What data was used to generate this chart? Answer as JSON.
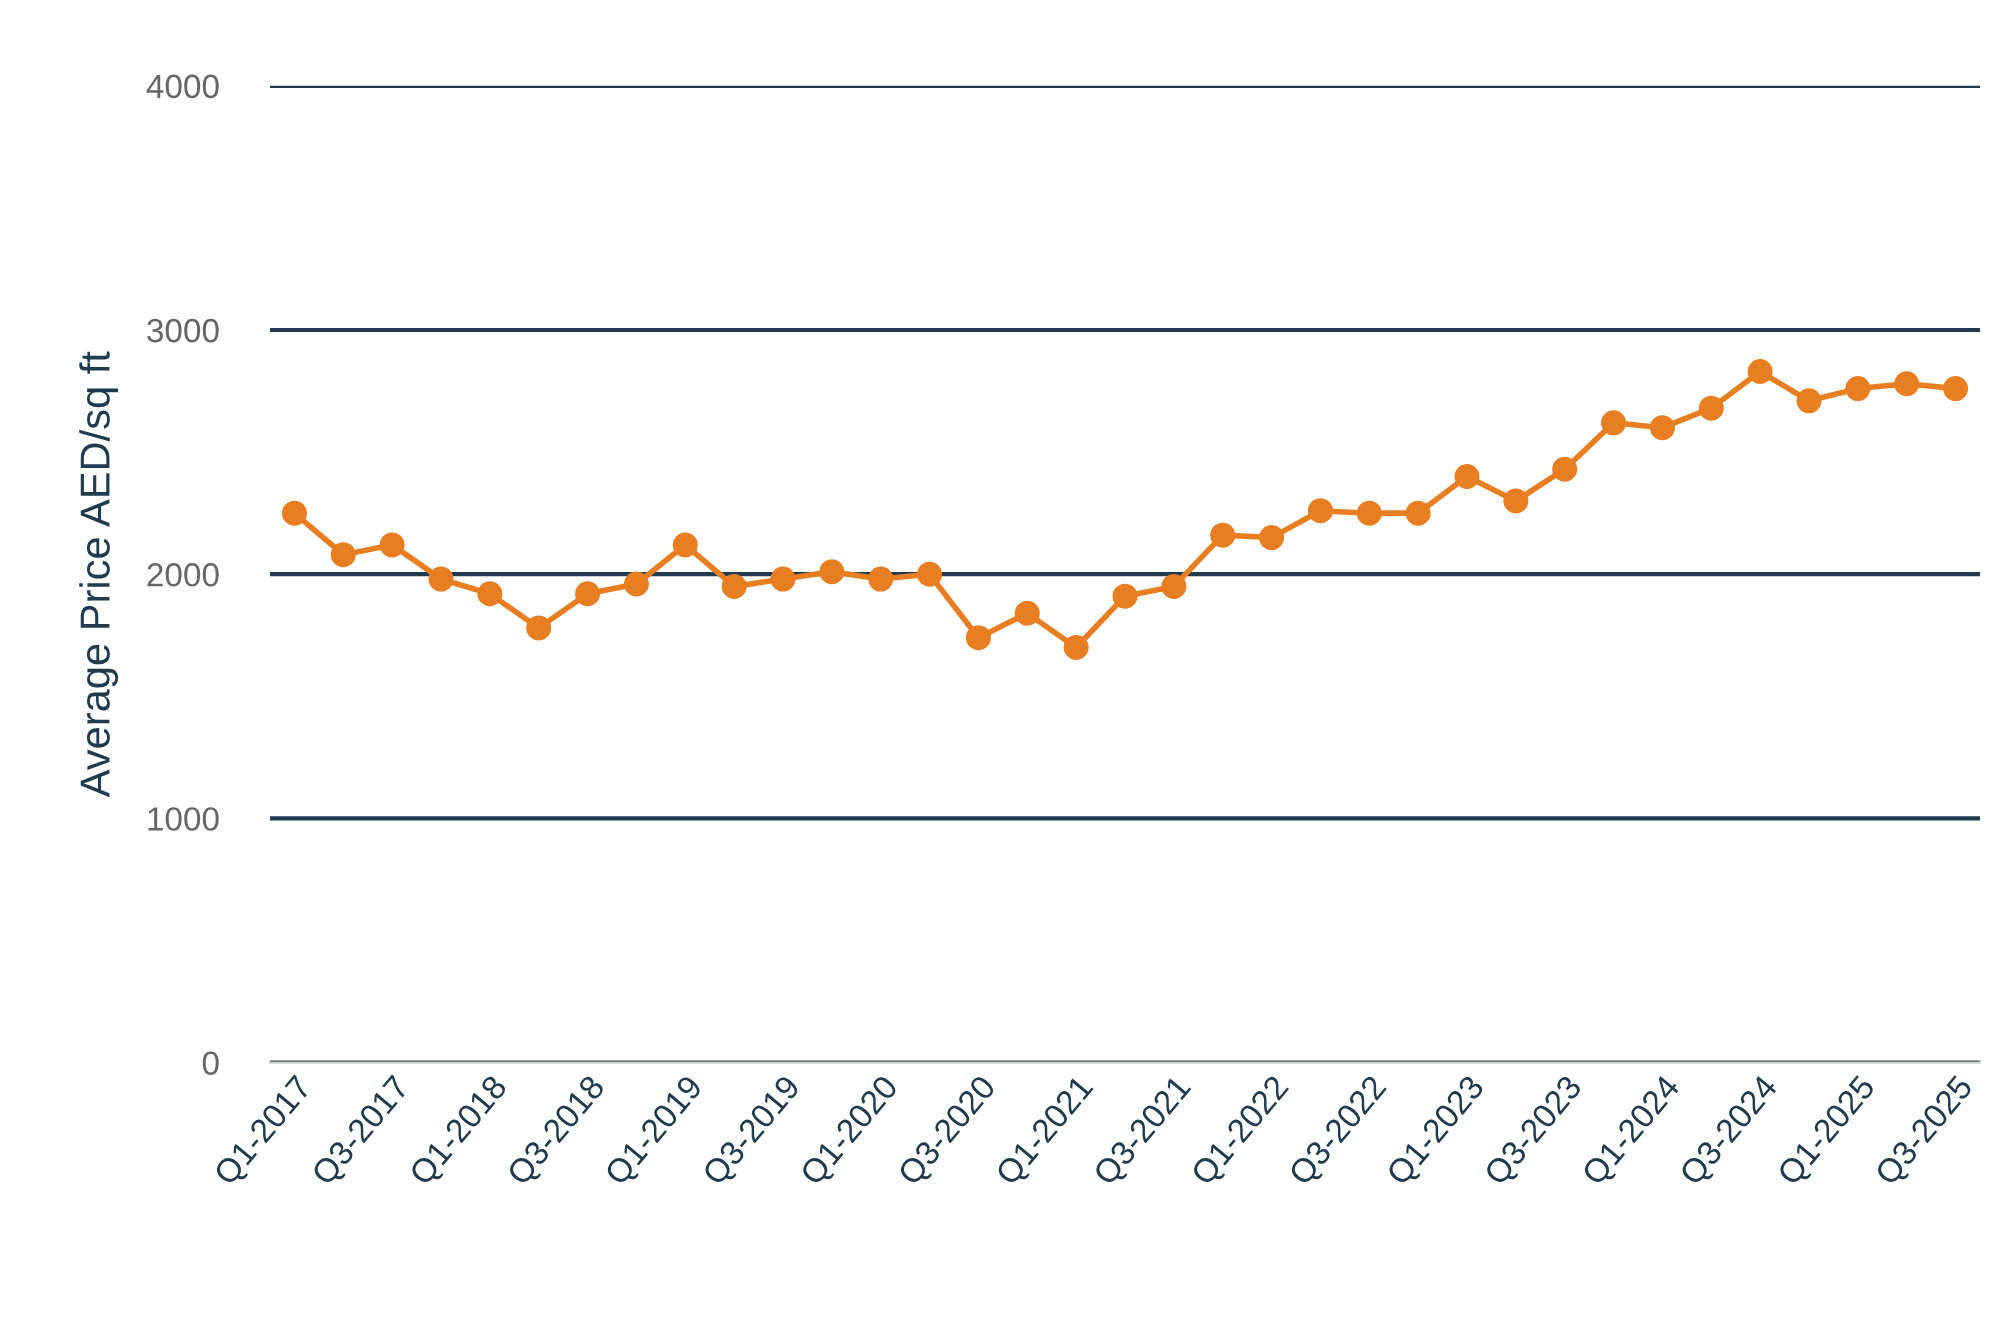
{
  "chart_data": {
    "type": "line",
    "ylabel": "Average Price AED/sq ft",
    "categories": [
      "Q1-2017",
      null,
      "Q3-2017",
      null,
      "Q1-2018",
      null,
      "Q3-2018",
      null,
      "Q1-2019",
      null,
      "Q3-2019",
      null,
      "Q1-2020",
      null,
      "Q3-2020",
      null,
      "Q1-2021",
      null,
      "Q3-2021",
      null,
      "Q1-2022",
      null,
      "Q3-2022",
      null,
      "Q1-2023",
      null,
      "Q3-2023",
      null,
      "Q1-2024",
      null,
      "Q3-2024",
      null,
      "Q1-2025",
      null,
      "Q3-2025"
    ],
    "series": [
      {
        "color": "#e87e22",
        "values": [
          2250,
          2080,
          2120,
          1980,
          1920,
          1780,
          1920,
          1960,
          2120,
          1950,
          1980,
          2010,
          1980,
          2000,
          1740,
          1840,
          1700,
          1910,
          1950,
          2160,
          2150,
          2260,
          2250,
          2250,
          2400,
          2300,
          2430,
          2620,
          2600,
          2680,
          2830,
          2710,
          2760,
          2780,
          2760
        ]
      }
    ],
    "ylim": [
      0,
      4000
    ],
    "yticks": [
      0,
      1000,
      2000,
      3000,
      4000
    ],
    "grid": "y",
    "marker": "circle",
    "line_style": "solid",
    "legend": false
  }
}
